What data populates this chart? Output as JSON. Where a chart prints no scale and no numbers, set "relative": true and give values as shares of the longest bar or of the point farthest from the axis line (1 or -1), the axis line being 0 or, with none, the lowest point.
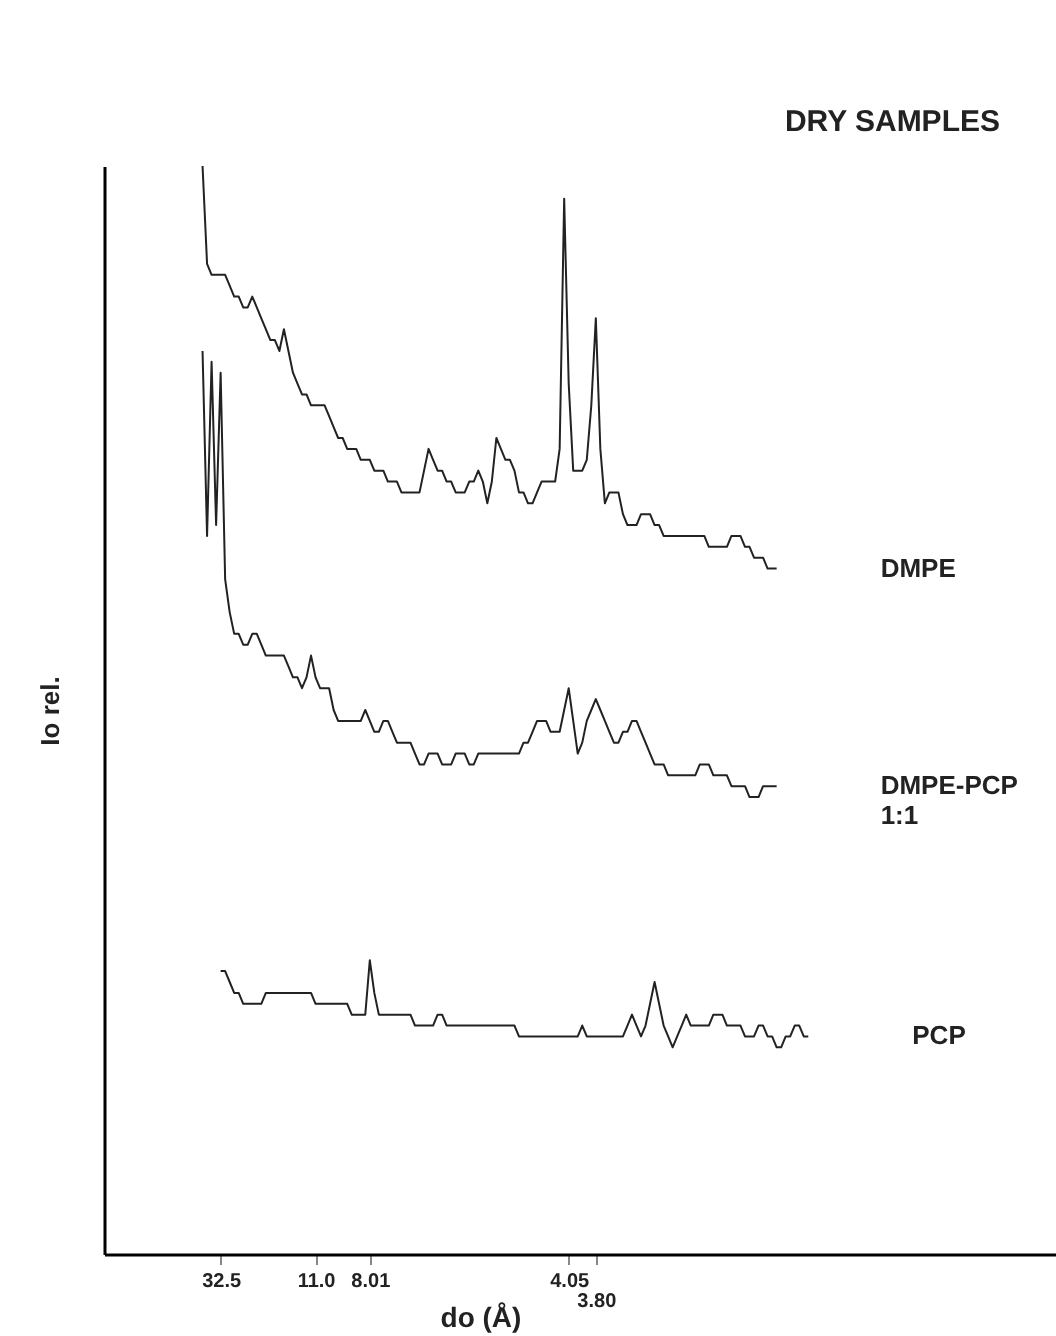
{
  "chart_data": {
    "type": "line",
    "title": "DRY SAMPLES",
    "xlabel": "do (Å)",
    "ylabel": "Io rel.",
    "relative": true,
    "grid": false,
    "categories": [
      null,
      null,
      null,
      null,
      null,
      null,
      null,
      null,
      null,
      null,
      null,
      null,
      null,
      null,
      null,
      null,
      null,
      null,
      null,
      null,
      null,
      null,
      null,
      null,
      null,
      "32.5",
      null,
      null,
      null,
      null,
      null,
      null,
      null,
      null,
      null,
      null,
      null,
      null,
      null,
      null,
      null,
      null,
      null,
      null,
      null,
      null,
      "11.0",
      null,
      null,
      null,
      null,
      null,
      null,
      null,
      null,
      null,
      null,
      null,
      "8.01",
      null,
      null,
      null,
      null,
      null,
      null,
      null,
      null,
      null,
      null,
      null,
      null,
      null,
      null,
      null,
      null,
      null,
      null,
      null,
      null,
      null,
      null,
      null,
      null,
      null,
      null,
      null,
      null,
      null,
      null,
      null,
      null,
      null,
      null,
      null,
      null,
      null,
      null,
      null,
      null,
      null,
      null,
      null,
      "4.05",
      null,
      null,
      null,
      null,
      null,
      "3.80",
      null,
      null,
      null,
      null,
      null,
      null,
      null,
      null,
      null,
      null,
      null,
      null,
      null,
      null,
      null,
      null,
      null,
      null,
      null,
      null,
      null,
      null,
      null,
      null,
      null,
      null,
      null,
      null,
      null,
      null,
      null,
      null,
      null,
      null,
      null,
      null,
      null,
      null,
      null,
      null,
      null,
      null,
      null,
      null,
      null,
      null,
      null,
      null,
      null,
      null,
      null,
      null,
      null,
      null,
      null,
      null,
      null,
      null,
      null,
      null,
      null,
      null,
      null,
      null,
      null,
      null,
      null,
      null,
      null,
      null,
      null,
      null,
      null,
      null,
      null,
      null,
      null,
      null,
      null,
      null,
      null,
      null,
      null,
      null,
      null,
      null,
      null,
      null,
      null,
      null,
      null,
      null,
      null,
      null,
      null,
      null,
      null,
      null,
      null,
      null,
      null
    ],
    "series": [
      {
        "name": "DMPE",
        "color": "#222222",
        "values": [
          null,
          null,
          null,
          null,
          null,
          null,
          null,
          null,
          null,
          null,
          null,
          null,
          null,
          null,
          null,
          null,
          null,
          null,
          null,
          null,
          null,
          1.0,
          0.91,
          0.9,
          0.9,
          0.9,
          0.9,
          0.89,
          0.88,
          0.88,
          0.87,
          0.87,
          0.88,
          0.87,
          0.86,
          0.85,
          0.84,
          0.84,
          0.83,
          0.85,
          0.83,
          0.81,
          0.8,
          0.79,
          0.79,
          0.78,
          0.78,
          0.78,
          0.78,
          0.77,
          0.76,
          0.75,
          0.75,
          0.74,
          0.74,
          0.74,
          0.73,
          0.73,
          0.73,
          0.72,
          0.72,
          0.72,
          0.71,
          0.71,
          0.71,
          0.7,
          0.7,
          0.7,
          0.7,
          0.7,
          0.72,
          0.74,
          0.73,
          0.72,
          0.72,
          0.71,
          0.71,
          0.7,
          0.7,
          0.7,
          0.71,
          0.71,
          0.72,
          0.71,
          0.69,
          0.71,
          0.75,
          0.74,
          0.73,
          0.73,
          0.72,
          0.7,
          0.7,
          0.69,
          0.69,
          0.7,
          0.71,
          0.71,
          0.71,
          0.71,
          0.74,
          0.97,
          0.8,
          0.72,
          0.72,
          0.72,
          0.73,
          0.78,
          0.86,
          0.74,
          0.69,
          0.7,
          0.7,
          0.7,
          0.68,
          0.67,
          0.67,
          0.67,
          0.68,
          0.68,
          0.68,
          0.67,
          0.67,
          0.66,
          0.66,
          0.66,
          0.66,
          0.66,
          0.66,
          0.66,
          0.66,
          0.66,
          0.66,
          0.65,
          0.65,
          0.65,
          0.65,
          0.65,
          0.66,
          0.66,
          0.66,
          0.65,
          0.65,
          0.64,
          0.64,
          0.64,
          0.63,
          0.63,
          0.63,
          null,
          null,
          null,
          null,
          null,
          null,
          null,
          null,
          null,
          null,
          null,
          null,
          null,
          null,
          null,
          null,
          null,
          null,
          null,
          null,
          null,
          null,
          null,
          null,
          null,
          null,
          null,
          null,
          null,
          null,
          null,
          null,
          null,
          null,
          null,
          null,
          null,
          null,
          null,
          null,
          null,
          null,
          null,
          null,
          null,
          null,
          null,
          null,
          null,
          null,
          null,
          null,
          null,
          null,
          null,
          null,
          null,
          null,
          null,
          null,
          null
        ]
      },
      {
        "name": "DMPE-PCP\n1:1",
        "color": "#222222",
        "values": [
          null,
          null,
          null,
          null,
          null,
          null,
          null,
          null,
          null,
          null,
          null,
          null,
          null,
          null,
          null,
          null,
          null,
          null,
          null,
          null,
          null,
          0.83,
          0.66,
          0.82,
          0.67,
          0.81,
          0.62,
          0.59,
          0.57,
          0.57,
          0.56,
          0.56,
          0.57,
          0.57,
          0.56,
          0.55,
          0.55,
          0.55,
          0.55,
          0.55,
          0.54,
          0.53,
          0.53,
          0.52,
          0.53,
          0.55,
          0.53,
          0.52,
          0.52,
          0.52,
          0.5,
          0.49,
          0.49,
          0.49,
          0.49,
          0.49,
          0.49,
          0.5,
          0.49,
          0.48,
          0.48,
          0.49,
          0.49,
          0.48,
          0.47,
          0.47,
          0.47,
          0.47,
          0.46,
          0.45,
          0.45,
          0.46,
          0.46,
          0.46,
          0.45,
          0.45,
          0.45,
          0.46,
          0.46,
          0.46,
          0.45,
          0.45,
          0.46,
          0.46,
          0.46,
          0.46,
          0.46,
          0.46,
          0.46,
          0.46,
          0.46,
          0.46,
          0.47,
          0.47,
          0.48,
          0.49,
          0.49,
          0.49,
          0.48,
          0.48,
          0.48,
          0.5,
          0.52,
          0.49,
          0.46,
          0.47,
          0.49,
          0.5,
          0.51,
          0.5,
          0.49,
          0.48,
          0.47,
          0.47,
          0.48,
          0.48,
          0.49,
          0.49,
          0.48,
          0.47,
          0.46,
          0.45,
          0.45,
          0.45,
          0.44,
          0.44,
          0.44,
          0.44,
          0.44,
          0.44,
          0.44,
          0.45,
          0.45,
          0.45,
          0.44,
          0.44,
          0.44,
          0.44,
          0.43,
          0.43,
          0.43,
          0.43,
          0.42,
          0.42,
          0.42,
          0.43,
          0.43,
          0.43,
          0.43,
          null,
          null,
          null,
          null,
          null,
          null,
          null,
          null,
          null,
          null,
          null,
          null,
          null,
          null,
          null,
          null,
          null,
          null,
          null,
          null,
          null,
          null,
          null,
          null,
          null,
          null,
          null,
          null,
          null,
          null,
          null,
          null,
          null,
          null,
          null,
          null,
          null,
          null,
          null,
          null,
          null,
          null,
          null,
          null,
          null,
          null,
          null,
          null,
          null,
          null,
          null,
          null,
          null,
          null,
          null,
          null,
          null,
          null,
          null,
          null,
          null
        ]
      },
      {
        "name": "PCP",
        "color": "#222222",
        "values": [
          null,
          null,
          null,
          null,
          null,
          null,
          null,
          null,
          null,
          null,
          null,
          null,
          null,
          null,
          null,
          null,
          null,
          null,
          null,
          null,
          null,
          null,
          null,
          null,
          null,
          0.26,
          0.26,
          0.25,
          0.24,
          0.24,
          0.23,
          0.23,
          0.23,
          0.23,
          0.23,
          0.24,
          0.24,
          0.24,
          0.24,
          0.24,
          0.24,
          0.24,
          0.24,
          0.24,
          0.24,
          0.24,
          0.23,
          0.23,
          0.23,
          0.23,
          0.23,
          0.23,
          0.23,
          0.23,
          0.22,
          0.22,
          0.22,
          0.22,
          0.27,
          0.24,
          0.22,
          0.22,
          0.22,
          0.22,
          0.22,
          0.22,
          0.22,
          0.22,
          0.21,
          0.21,
          0.21,
          0.21,
          0.21,
          0.22,
          0.22,
          0.21,
          0.21,
          0.21,
          0.21,
          0.21,
          0.21,
          0.21,
          0.21,
          0.21,
          0.21,
          0.21,
          0.21,
          0.21,
          0.21,
          0.21,
          0.21,
          0.2,
          0.2,
          0.2,
          0.2,
          0.2,
          0.2,
          0.2,
          0.2,
          0.2,
          0.2,
          0.2,
          0.2,
          0.2,
          0.2,
          0.21,
          0.2,
          0.2,
          0.2,
          0.2,
          0.2,
          0.2,
          0.2,
          0.2,
          0.2,
          0.21,
          0.22,
          0.21,
          0.2,
          0.21,
          0.23,
          0.25,
          0.23,
          0.21,
          0.2,
          0.19,
          0.2,
          0.21,
          0.22,
          0.21,
          0.21,
          0.21,
          0.21,
          0.21,
          0.22,
          0.22,
          0.22,
          0.21,
          0.21,
          0.21,
          0.21,
          0.2,
          0.2,
          0.2,
          0.21,
          0.21,
          0.2,
          0.2,
          0.19,
          0.19,
          0.2,
          0.2,
          0.21,
          0.21,
          0.2,
          0.2,
          null,
          null,
          null,
          null,
          null,
          null,
          null,
          null,
          null,
          null,
          null,
          null,
          null,
          null,
          null,
          null,
          null,
          null,
          null,
          null,
          null,
          null,
          null,
          null,
          null,
          null,
          null,
          null,
          null,
          null,
          null,
          null,
          null,
          null,
          null,
          null,
          null,
          null,
          null,
          null,
          null,
          null,
          null,
          null,
          null,
          null,
          null,
          null,
          null,
          null,
          null,
          null,
          null,
          null
        ]
      }
    ]
  }
}
